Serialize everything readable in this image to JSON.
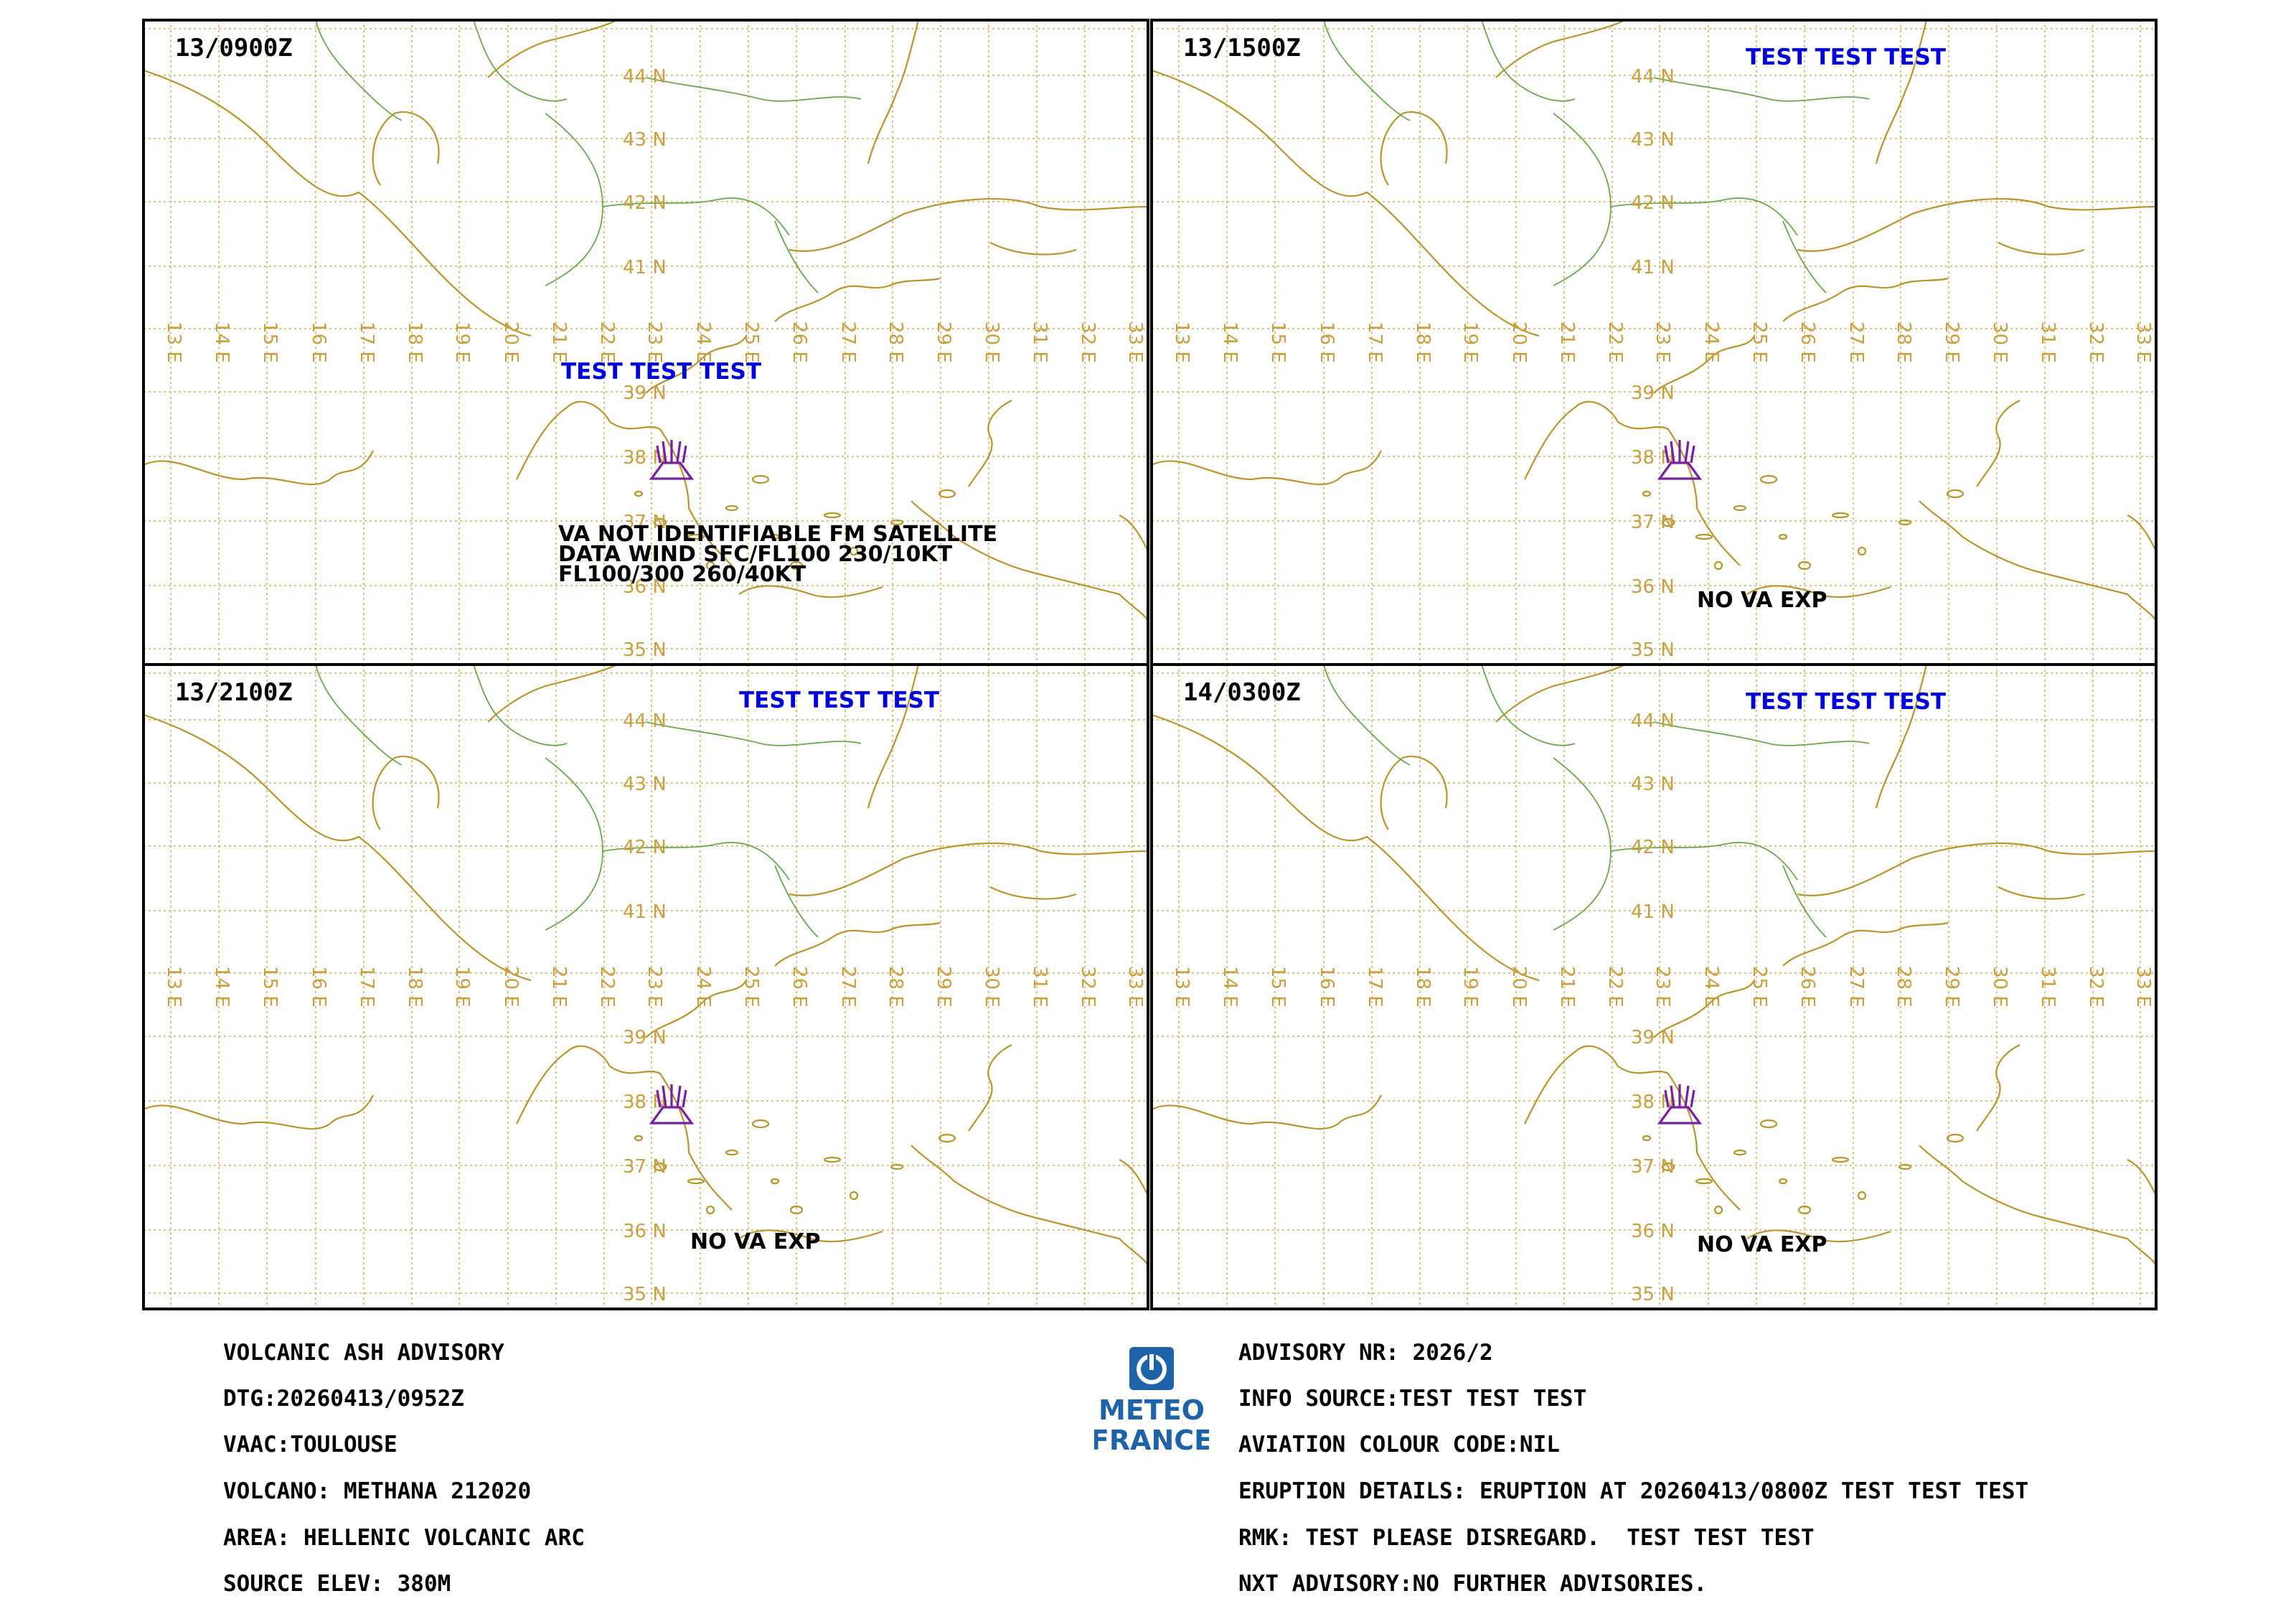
{
  "colors": {
    "frame": "#000000",
    "grid": "#c8a040",
    "coast": "#b8952a",
    "border": "#6aa84f",
    "test_text": "#0000dd",
    "volcano": "#7a1fa2",
    "logo_blue": "#1e63a8"
  },
  "grid_labels": {
    "lon": [
      "13 E",
      "14 E",
      "15 E",
      "16 E",
      "17 E",
      "18 E",
      "19 E",
      "20 E",
      "21 E",
      "22 E",
      "23 E",
      "24 E",
      "25 E",
      "26 E",
      "27 E",
      "28 E",
      "29 E",
      "30 E",
      "31 E",
      "32 E",
      "33 E"
    ],
    "lat": [
      "44 N",
      "43 N",
      "42 N",
      "41 N",
      "39 N",
      "38 N",
      "37 N",
      "36 N",
      "35 N"
    ]
  },
  "panels": [
    {
      "time": "13/0900Z",
      "test_label": "TEST TEST TEST",
      "remarks": [
        "VA NOT IDENTIFIABLE FM SATELLITE",
        "DATA WIND SFC/FL100 230/10KT",
        "FL100/300 260/40KT"
      ]
    },
    {
      "time": "13/1500Z",
      "test_label": "TEST TEST TEST",
      "remarks": [
        "NO VA EXP"
      ]
    },
    {
      "time": "13/2100Z",
      "test_label": "TEST TEST TEST",
      "remarks": [
        "NO VA EXP"
      ]
    },
    {
      "time": "14/0300Z",
      "test_label": "TEST TEST TEST",
      "remarks": [
        "NO VA EXP"
      ]
    }
  ],
  "logo": {
    "line1": "METEO",
    "line2": "FRANCE",
    "icon": "meteo-france-logo-icon"
  },
  "volcano_icon": "volcano-icon",
  "advisory_left": [
    "VOLCANIC ASH ADVISORY",
    "DTG:20260413/0952Z",
    "VAAC:TOULOUSE",
    "VOLCANO: METHANA 212020",
    "AREA: HELLENIC VOLCANIC ARC",
    "SOURCE ELEV: 380M"
  ],
  "advisory_right": [
    "ADVISORY NR: 2026/2",
    "INFO SOURCE:TEST TEST TEST",
    "AVIATION COLOUR CODE:NIL",
    "ERUPTION DETAILS: ERUPTION AT 20260413/0800Z TEST TEST TEST",
    "RMK: TEST PLEASE DISREGARD.  TEST TEST TEST",
    "NXT ADVISORY:NO FURTHER ADVISORIES."
  ]
}
